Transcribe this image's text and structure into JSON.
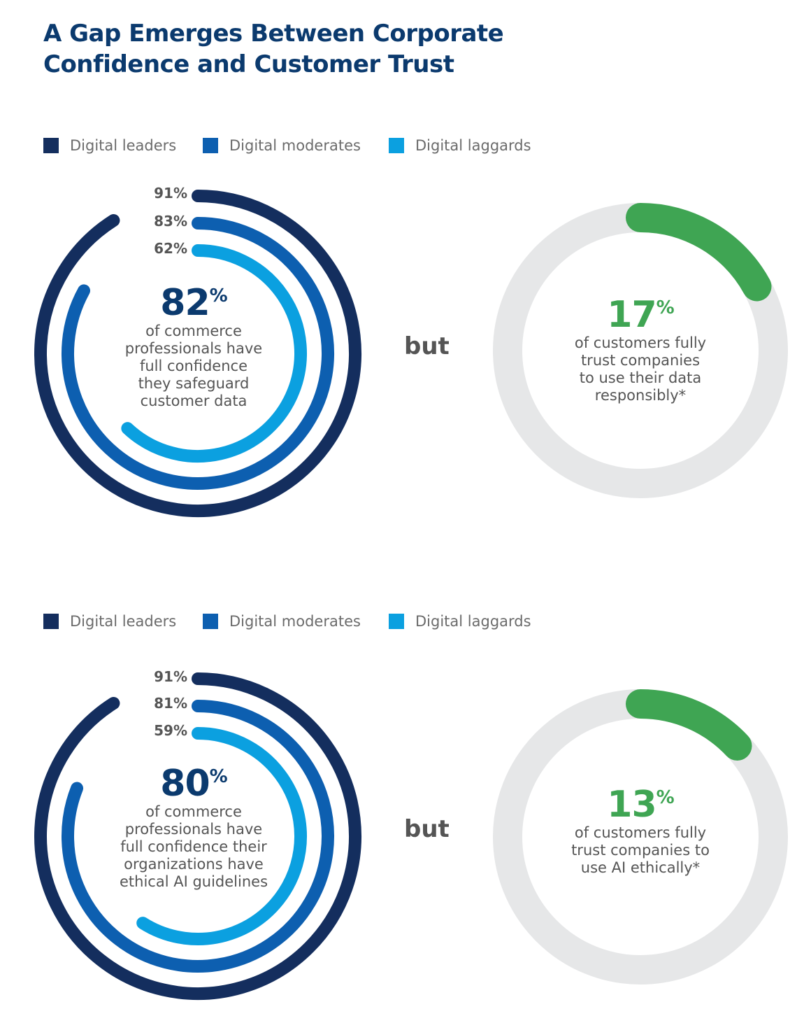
{
  "title": {
    "line1": "A Gap Emerges Between Corporate",
    "line2": "Confidence and Customer Trust"
  },
  "colors": {
    "title": "#0b3a6e",
    "digital_leaders": "#142e5e",
    "digital_moderates": "#0d5fb0",
    "digital_laggards": "#0ba0e0",
    "customer_trust": "#3fa553",
    "track": "#e6e7e8"
  },
  "connector_label": "but",
  "chart_data": [
    {
      "type": "radial-bar",
      "legend": [
        "Digital leaders",
        "Digital moderates",
        "Digital laggards"
      ],
      "series": [
        {
          "name": "Digital leaders",
          "value": 91,
          "label": "91%"
        },
        {
          "name": "Digital moderates",
          "value": 83,
          "label": "83%"
        },
        {
          "name": "Digital laggards",
          "value": 62,
          "label": "62%"
        }
      ],
      "headline_value": "82",
      "headline_unit": "%",
      "headline_lines": [
        "of commerce",
        "professionals have",
        "full confidence",
        "they safeguard",
        "customer data"
      ]
    },
    {
      "type": "donut",
      "value": 17,
      "headline_value": "17",
      "headline_unit": "%",
      "headline_lines": [
        "of customers fully",
        "trust companies",
        "to use their data",
        "responsibly*"
      ]
    },
    {
      "type": "radial-bar",
      "legend": [
        "Digital leaders",
        "Digital moderates",
        "Digital laggards"
      ],
      "series": [
        {
          "name": "Digital leaders",
          "value": 91,
          "label": "91%"
        },
        {
          "name": "Digital moderates",
          "value": 81,
          "label": "81%"
        },
        {
          "name": "Digital laggards",
          "value": 59,
          "label": "59%"
        }
      ],
      "headline_value": "80",
      "headline_unit": "%",
      "headline_lines": [
        "of commerce",
        "professionals have",
        "full confidence their",
        "organizations have",
        "ethical AI guidelines"
      ]
    },
    {
      "type": "donut",
      "value": 13,
      "headline_value": "13",
      "headline_unit": "%",
      "headline_lines": [
        "of customers fully",
        "trust companies to",
        "use AI ethically*"
      ]
    }
  ]
}
